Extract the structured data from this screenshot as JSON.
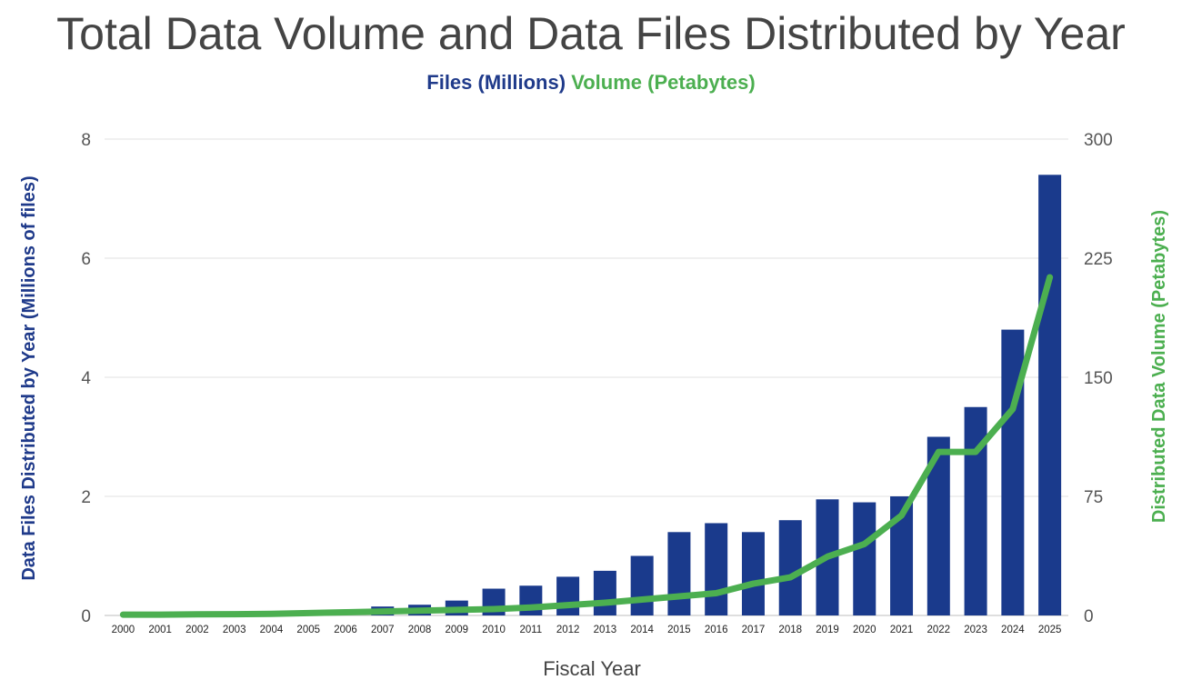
{
  "chart_data": {
    "type": "bar",
    "title": "Total Data Volume and Data Files Distributed by Year",
    "legend": [
      "Files (Millions)",
      "Volume (Petabytes)"
    ],
    "legend_placement": "top",
    "xlabel": "Fiscal Year",
    "ylabel": "Data Files Distributed by Year (Millions of files)",
    "y2label": "Distributed Data Volume (Petabytes)",
    "ylim": [
      0,
      8
    ],
    "y2lim": [
      0,
      300
    ],
    "yticks": [
      "0",
      "2",
      "4",
      "6",
      "8"
    ],
    "y2ticks": [
      "0",
      "75",
      "150",
      "225",
      "300"
    ],
    "grid": true,
    "categories": [
      "2000",
      "2001",
      "2002",
      "2003",
      "2004",
      "2005",
      "2006",
      "2007",
      "2008",
      "2009",
      "2010",
      "2011",
      "2012",
      "2013",
      "2014",
      "2015",
      "2016",
      "2017",
      "2018",
      "2019",
      "2020",
      "2021",
      "2022",
      "2023",
      "2024",
      "2025"
    ],
    "series": [
      {
        "name": "Files (Millions)",
        "type": "bar",
        "axis": "left",
        "color": "#1a3a8c",
        "values": [
          0,
          0,
          0,
          0,
          0,
          0,
          0,
          0.15,
          0.18,
          0.25,
          0.45,
          0.5,
          0.65,
          0.75,
          1.0,
          1.4,
          1.55,
          1.4,
          1.6,
          1.95,
          1.9,
          2.0,
          3.0,
          3.5,
          4.8,
          7.4
        ]
      },
      {
        "name": "Volume (Petabytes)",
        "type": "line",
        "axis": "right",
        "color": "#4caf50",
        "values": [
          0.5,
          0.5,
          0.7,
          0.8,
          1,
          1.5,
          2,
          2.5,
          3,
          3.5,
          4,
          5,
          6.5,
          8,
          10,
          12,
          14,
          20,
          24,
          37,
          45,
          63,
          103,
          103,
          130,
          213
        ]
      }
    ]
  }
}
